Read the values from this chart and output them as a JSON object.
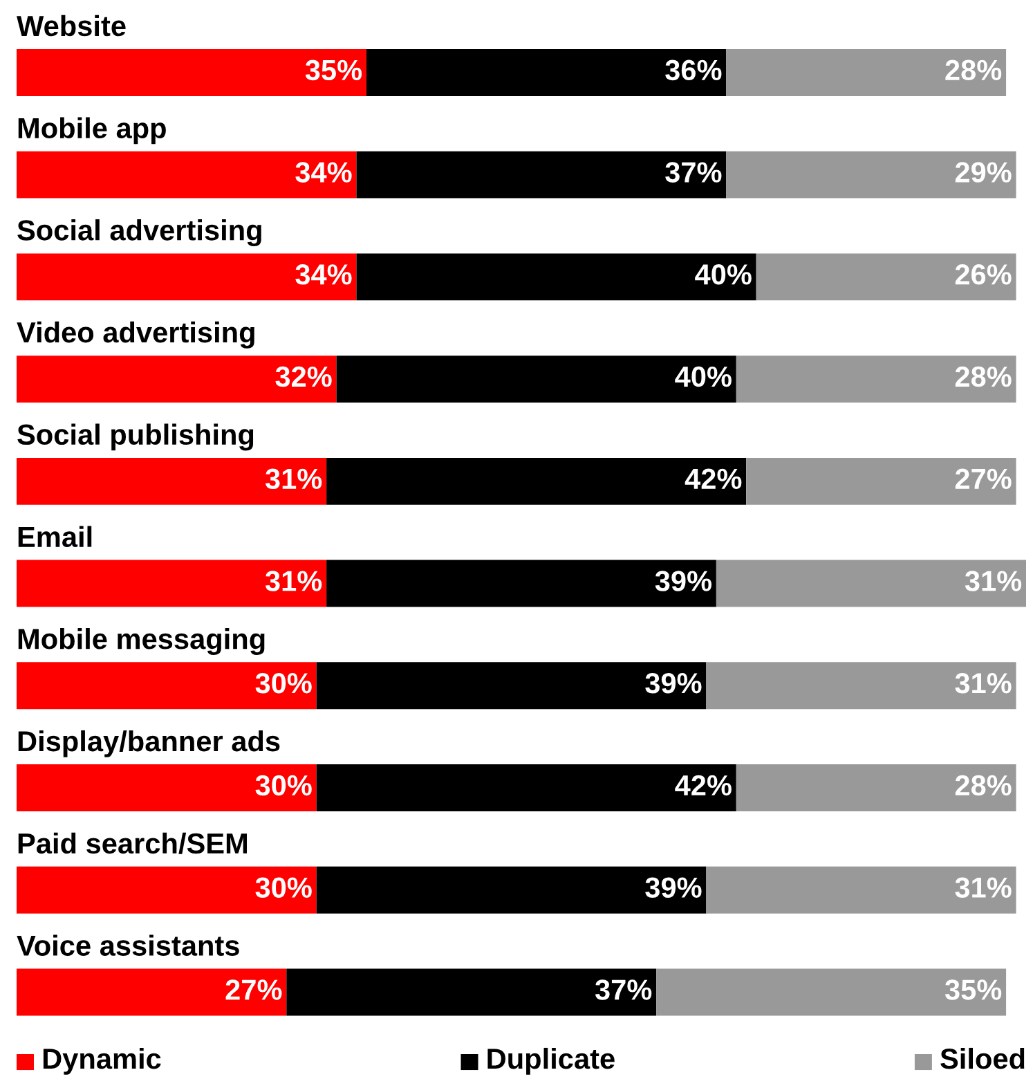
{
  "chart_data": {
    "type": "bar",
    "orientation": "horizontal",
    "stacked": true,
    "legend": "bottom",
    "categories": [
      "Website",
      "Mobile app",
      "Social advertising",
      "Video advertising",
      "Social publishing",
      "Email",
      "Mobile messaging",
      "Display/banner ads",
      "Paid search/SEM",
      "Voice assistants"
    ],
    "series": [
      {
        "name": "Dynamic",
        "color": "#ff0000",
        "values": [
          35,
          34,
          34,
          32,
          31,
          31,
          30,
          30,
          30,
          27
        ],
        "value_labels": [
          "35%",
          "34%",
          "34%",
          "32%",
          "31%",
          "31%",
          "30%",
          "30%",
          "30%",
          "27%"
        ]
      },
      {
        "name": "Duplicate",
        "color": "#000000",
        "values": [
          36,
          37,
          40,
          40,
          42,
          39,
          39,
          42,
          39,
          37
        ],
        "value_labels": [
          "36%",
          "37%",
          "40%",
          "40%",
          "42%",
          "39%",
          "39%",
          "42%",
          "39%",
          "37%"
        ]
      },
      {
        "name": "Siloed",
        "color": "#999999",
        "values": [
          28,
          29,
          26,
          28,
          27,
          31,
          31,
          28,
          31,
          35
        ],
        "value_labels": [
          "28%",
          "29%",
          "26%",
          "28%",
          "27%",
          "31%",
          "31%",
          "28%",
          "31%",
          "35%"
        ]
      }
    ]
  }
}
